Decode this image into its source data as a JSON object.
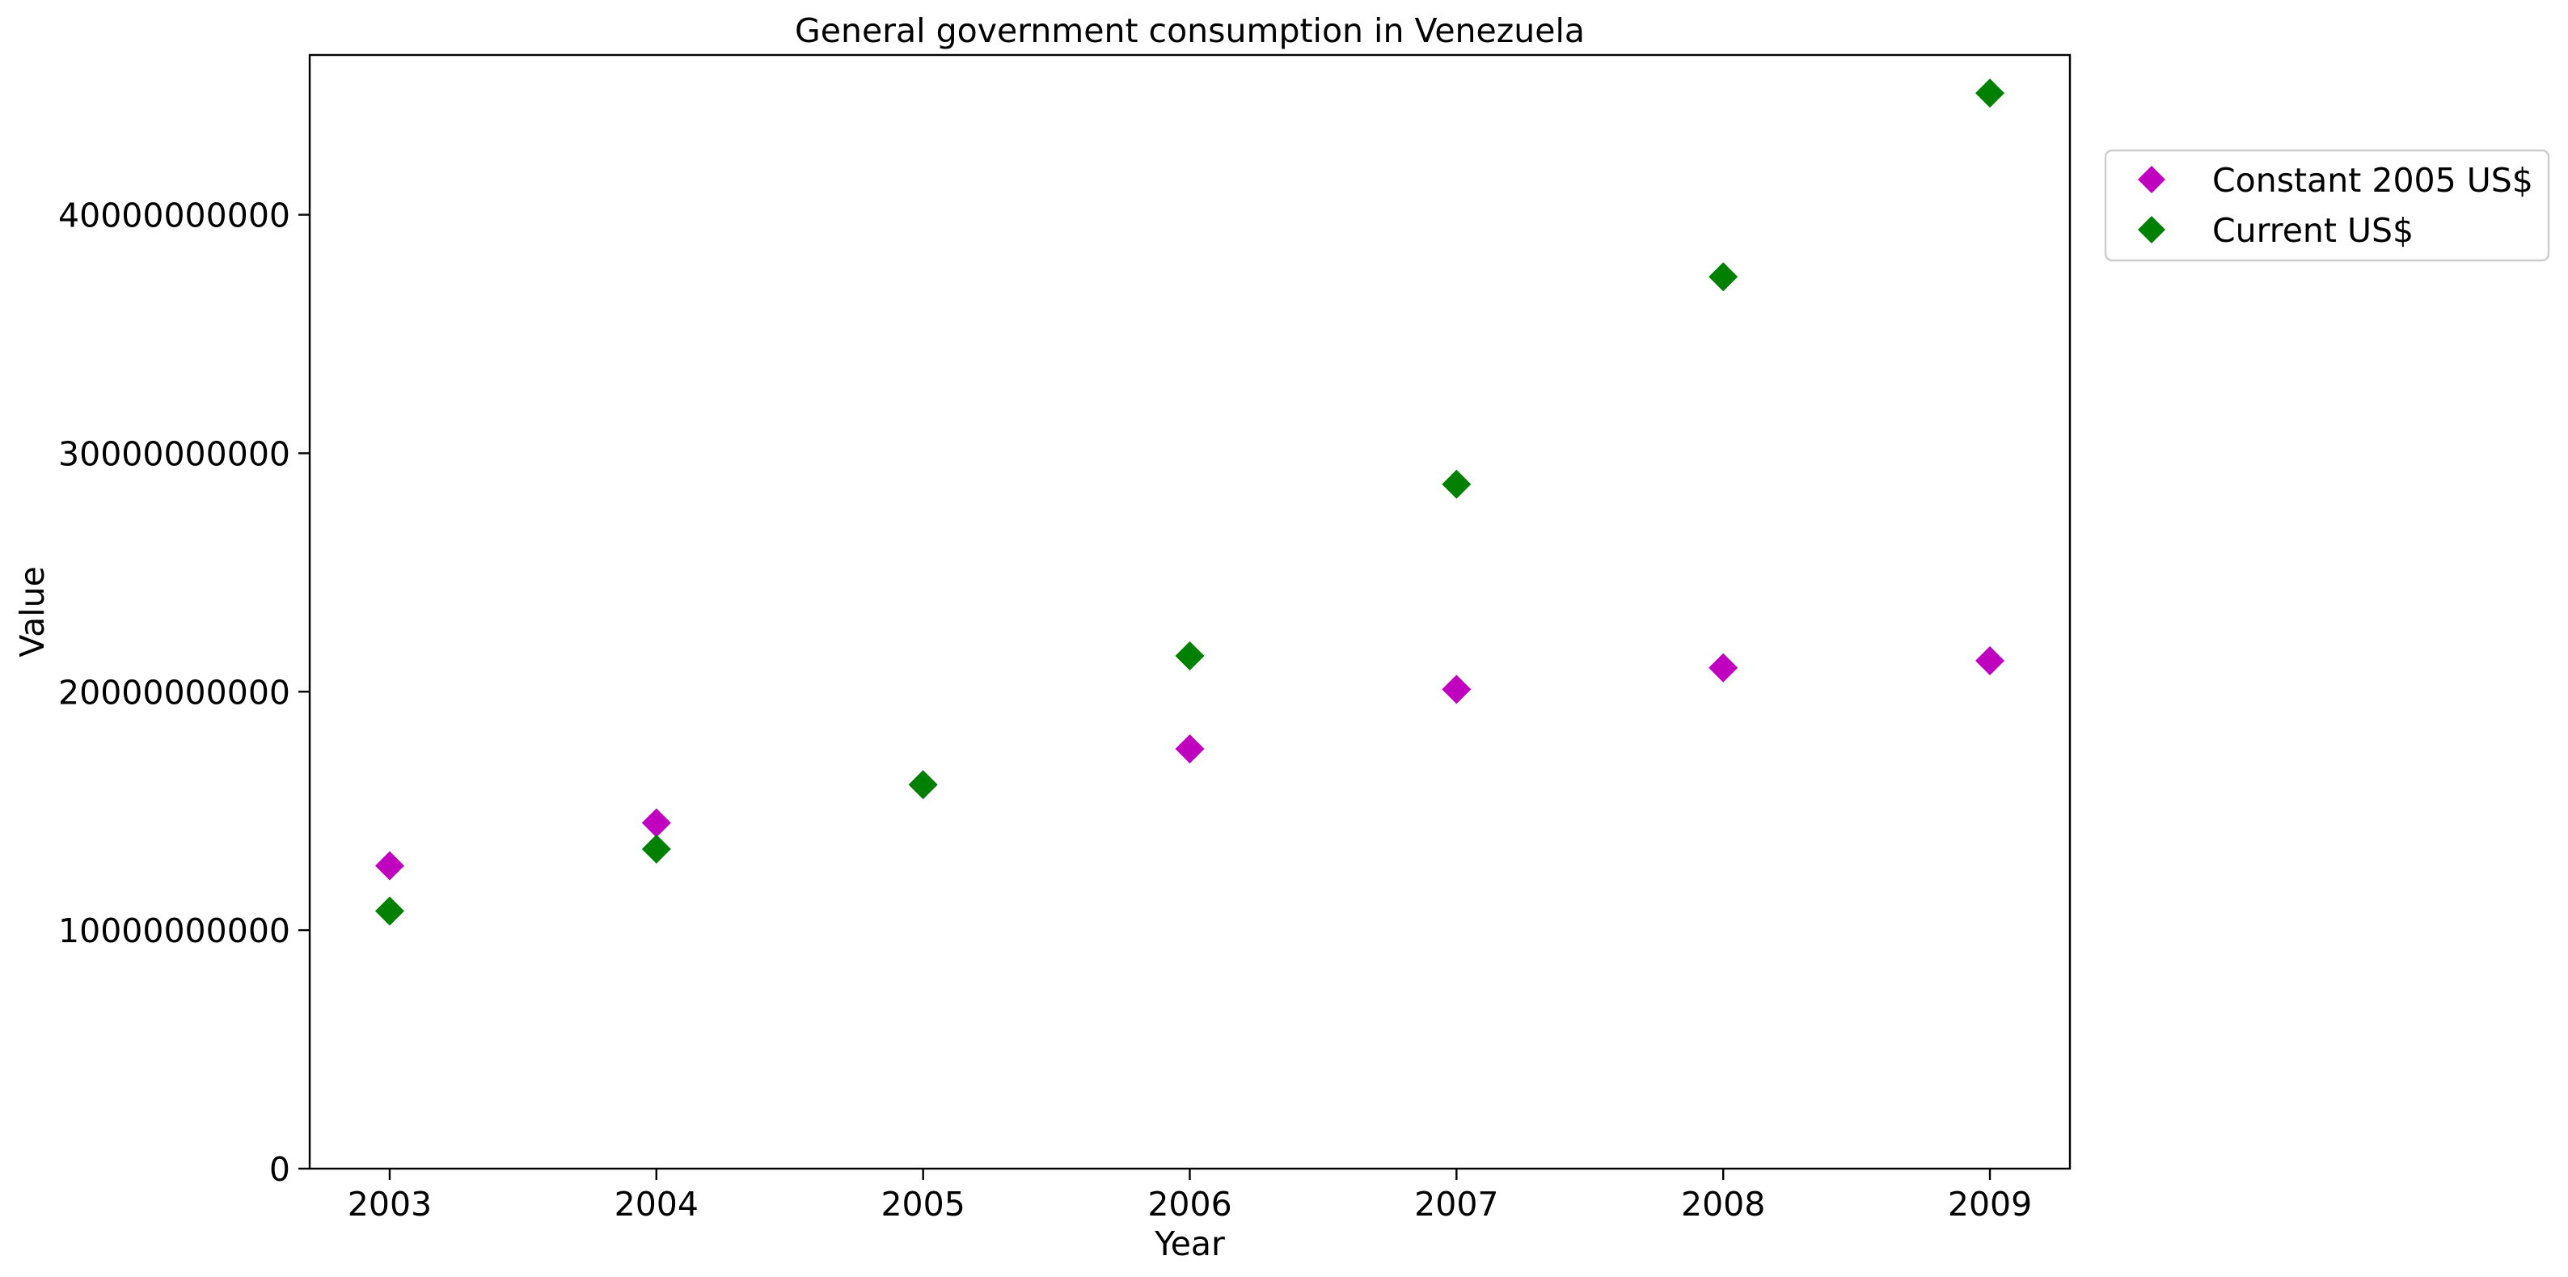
{
  "chart_data": {
    "type": "scatter",
    "title": "General government consumption in Venezuela",
    "xlabel": "Year",
    "ylabel": "Value",
    "x": [
      2003,
      2004,
      2005,
      2006,
      2007,
      2008,
      2009
    ],
    "xlim": [
      2002.7,
      2009.3
    ],
    "ylim": [
      0,
      46700000000
    ],
    "xticks": [
      2003,
      2004,
      2005,
      2006,
      2007,
      2008,
      2009
    ],
    "yticks": [
      0,
      10000000000,
      20000000000,
      30000000000,
      40000000000
    ],
    "ytick_labels": [
      "0",
      "10000000000",
      "20000000000",
      "30000000000",
      "40000000000"
    ],
    "marker": "diamond",
    "grid": false,
    "legend_position": "outside-right-top",
    "series": [
      {
        "name": "Constant 2005 US$",
        "color": "#bf00bf",
        "values": [
          12700000000,
          14500000000,
          16100000000,
          17600000000,
          20100000000,
          21000000000,
          21300000000
        ]
      },
      {
        "name": "Current US$",
        "color": "#008000",
        "values": [
          10800000000,
          13400000000,
          16100000000,
          21500000000,
          28700000000,
          37400000000,
          45100000000
        ]
      }
    ]
  }
}
